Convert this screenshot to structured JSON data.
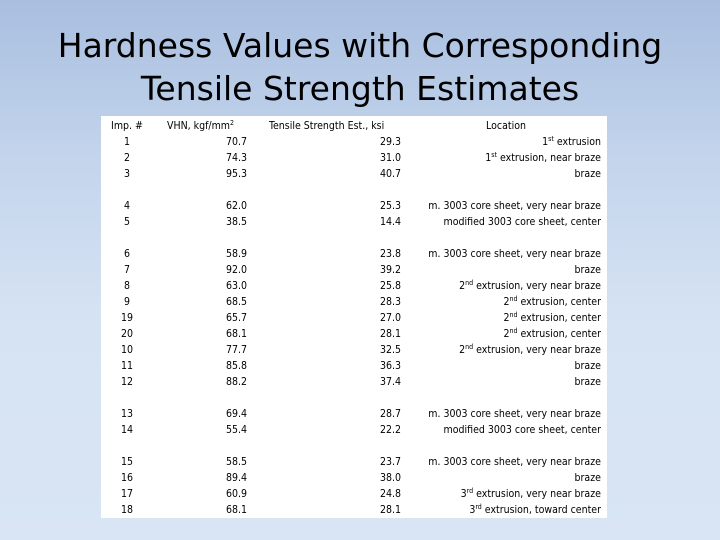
{
  "title": {
    "line1": "Hardness Values with Corresponding",
    "line2": "Tensile Strength Estimates"
  },
  "columns": {
    "imp": "Imp. #",
    "vhn": "VHN, kgf/mm",
    "vhn_sup": "2",
    "tensile": "Tensile Strength Est., ksi",
    "location": "Location"
  },
  "groups": [
    {
      "rows": [
        {
          "imp": "1",
          "vhn": "70.7",
          "ts": "29.3",
          "loc_pre": "1",
          "loc_sup": "st",
          "loc": " extrusion"
        },
        {
          "imp": "2",
          "vhn": "74.3",
          "ts": "31.0",
          "loc_pre": "1",
          "loc_sup": "st",
          "loc": " extrusion, near braze"
        },
        {
          "imp": "3",
          "vhn": "95.3",
          "ts": "40.7",
          "loc_pre": "",
          "loc_sup": "",
          "loc": "braze"
        }
      ]
    },
    {
      "rows": [
        {
          "imp": "4",
          "vhn": "62.0",
          "ts": "25.3",
          "loc_pre": "",
          "loc_sup": "",
          "loc": "m. 3003 core sheet, very near braze"
        },
        {
          "imp": "5",
          "vhn": "38.5",
          "ts": "14.4",
          "loc_pre": "",
          "loc_sup": "",
          "loc": "modified 3003 core sheet, center"
        }
      ]
    },
    {
      "rows": [
        {
          "imp": "6",
          "vhn": "58.9",
          "ts": "23.8",
          "loc_pre": "",
          "loc_sup": "",
          "loc": "m. 3003 core sheet, very near braze"
        },
        {
          "imp": "7",
          "vhn": "92.0",
          "ts": "39.2",
          "loc_pre": "",
          "loc_sup": "",
          "loc": "braze"
        },
        {
          "imp": "8",
          "vhn": "63.0",
          "ts": "25.8",
          "loc_pre": "2",
          "loc_sup": "nd",
          "loc": " extrusion, very near braze"
        },
        {
          "imp": "9",
          "vhn": "68.5",
          "ts": "28.3",
          "loc_pre": "2",
          "loc_sup": "nd",
          "loc": " extrusion, center"
        },
        {
          "imp": "19",
          "vhn": "65.7",
          "ts": "27.0",
          "loc_pre": "2",
          "loc_sup": "nd",
          "loc": " extrusion, center"
        },
        {
          "imp": "20",
          "vhn": "68.1",
          "ts": "28.1",
          "loc_pre": "2",
          "loc_sup": "nd",
          "loc": " extrusion, center"
        },
        {
          "imp": "10",
          "vhn": "77.7",
          "ts": "32.5",
          "loc_pre": "2",
          "loc_sup": "nd",
          "loc": " extrusion, very near braze"
        },
        {
          "imp": "11",
          "vhn": "85.8",
          "ts": "36.3",
          "loc_pre": "",
          "loc_sup": "",
          "loc": "braze"
        },
        {
          "imp": "12",
          "vhn": "88.2",
          "ts": "37.4",
          "loc_pre": "",
          "loc_sup": "",
          "loc": "braze"
        }
      ]
    },
    {
      "rows": [
        {
          "imp": "13",
          "vhn": "69.4",
          "ts": "28.7",
          "loc_pre": "",
          "loc_sup": "",
          "loc": "m. 3003 core sheet, very near braze"
        },
        {
          "imp": "14",
          "vhn": "55.4",
          "ts": "22.2",
          "loc_pre": "",
          "loc_sup": "",
          "loc": "modified 3003 core sheet, center"
        }
      ]
    },
    {
      "rows": [
        {
          "imp": "15",
          "vhn": "58.5",
          "ts": "23.7",
          "loc_pre": "",
          "loc_sup": "",
          "loc": "m. 3003 core sheet, very near braze"
        },
        {
          "imp": "16",
          "vhn": "89.4",
          "ts": "38.0",
          "loc_pre": "",
          "loc_sup": "",
          "loc": "braze"
        },
        {
          "imp": "17",
          "vhn": "60.9",
          "ts": "24.8",
          "loc_pre": "3",
          "loc_sup": "rd",
          "loc": " extrusion, very near braze"
        },
        {
          "imp": "18",
          "vhn": "68.1",
          "ts": "28.1",
          "loc_pre": "3",
          "loc_sup": "rd",
          "loc": " extrusion, toward center"
        }
      ]
    }
  ]
}
